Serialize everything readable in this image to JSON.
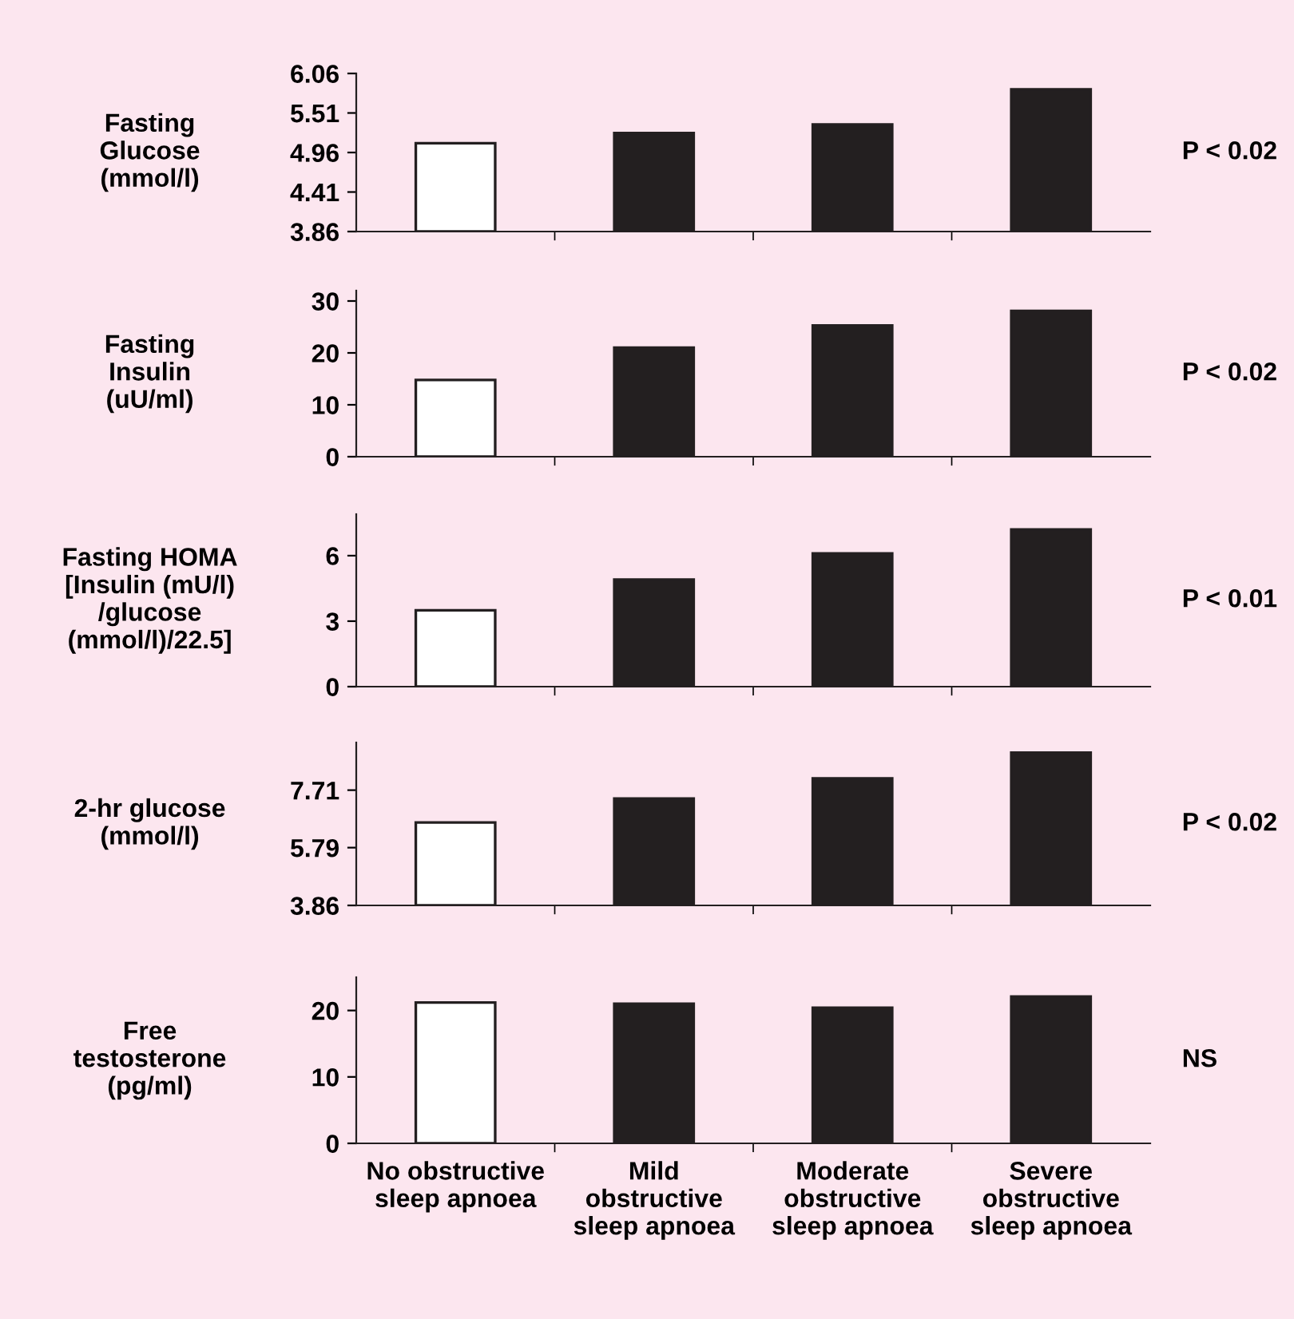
{
  "chart_data": [
    {
      "type": "bar",
      "ylabel": "Fasting\nGlucose\n(mmol/l)",
      "categories": [
        null,
        null,
        null,
        null
      ],
      "values": [
        5.09,
        5.23,
        5.35,
        5.84
      ],
      "colors": [
        "#ffffff",
        "#231f20",
        "#231f20",
        "#231f20"
      ],
      "ylim": [
        3.86,
        6.06
      ],
      "yticks": [
        3.86,
        4.41,
        4.96,
        5.51,
        6.06
      ],
      "tick_labels": "y",
      "annotations": [
        "P < 0.02"
      ]
    },
    {
      "type": "bar",
      "ylabel": "Fasting\nInsulin\n(uU/ml)",
      "categories": [
        null,
        null,
        null,
        null
      ],
      "values": [
        14.8,
        21.0,
        25.3,
        28.1
      ],
      "colors": [
        "#ffffff",
        "#231f20",
        "#231f20",
        "#231f20"
      ],
      "ylim": [
        0,
        32
      ],
      "yticks": [
        0,
        10,
        20,
        30
      ],
      "tick_labels": "y",
      "annotations": [
        "P < 0.02"
      ]
    },
    {
      "type": "bar",
      "ylabel": "Fasting HOMA\n[Insulin (mU/l)\n/glucose\n(mmol/l)/22.5]",
      "categories": [
        null,
        null,
        null,
        null
      ],
      "values": [
        3.5,
        4.9,
        6.1,
        7.2
      ],
      "colors": [
        "#ffffff",
        "#231f20",
        "#231f20",
        "#231f20"
      ],
      "ylim": [
        0,
        7.9
      ],
      "yticks": [
        0,
        3,
        6
      ],
      "tick_labels": "y",
      "annotations": [
        "P < 0.01"
      ]
    },
    {
      "type": "bar",
      "ylabel": "2-hr glucose\n(mmol/l)",
      "categories": [
        null,
        null,
        null,
        null
      ],
      "values": [
        6.63,
        7.43,
        8.1,
        8.96
      ],
      "colors": [
        "#ffffff",
        "#231f20",
        "#231f20",
        "#231f20"
      ],
      "ylim": [
        3.86,
        9.3
      ],
      "yticks": [
        3.86,
        5.79,
        7.71
      ],
      "tick_labels": "y",
      "annotations": [
        "P < 0.02"
      ]
    },
    {
      "type": "bar",
      "ylabel": "Free\ntestosterone\n(pg/ml)",
      "categories": [
        "No obstructive\nsleep apnoea",
        "Mild\nobstructive\nsleep apnoea",
        "Moderate\nobstructive\nsleep apnoea",
        "Severe\nobstructive\nsleep apnoea"
      ],
      "values": [
        21.2,
        21.0,
        20.4,
        22.1
      ],
      "colors": [
        "#ffffff",
        "#231f20",
        "#231f20",
        "#231f20"
      ],
      "ylim": [
        0,
        25
      ],
      "yticks": [
        0,
        10,
        20
      ],
      "annotations": [
        "NS"
      ]
    }
  ]
}
